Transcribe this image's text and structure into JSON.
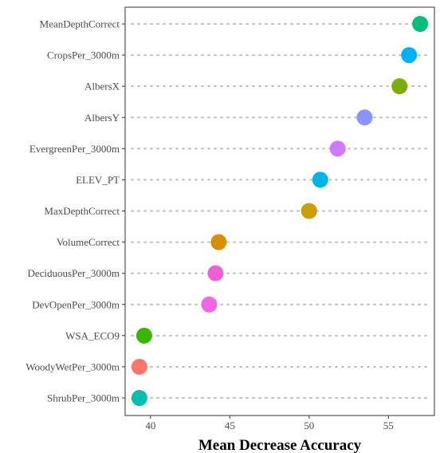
{
  "chart_data": {
    "type": "scatter",
    "title": "",
    "xlabel": "Mean Decrease Accuracy",
    "ylabel": "",
    "xlim": [
      38.4,
      57.9
    ],
    "xticks": [
      40,
      45,
      50,
      55
    ],
    "grid": "dotted horizontal lines per category",
    "legend": "none",
    "points": [
      {
        "label": "MeanDepthCorrect",
        "value": 57.0,
        "color": "#00BF7D"
      },
      {
        "label": "CropsPer_3000m",
        "value": 56.3,
        "color": "#00B0F6"
      },
      {
        "label": "AlbersX",
        "value": 55.7,
        "color": "#7CAE00"
      },
      {
        "label": "AlbersY",
        "value": 53.5,
        "color": "#8B93FF"
      },
      {
        "label": "EvergreenPer_3000m",
        "value": 51.8,
        "color": "#D078FF"
      },
      {
        "label": "ELEV_PT",
        "value": 50.7,
        "color": "#00B4E8"
      },
      {
        "label": "MaxDepthCorrect",
        "value": 50.0,
        "color": "#C9A000"
      },
      {
        "label": "VolumeCorrect",
        "value": 44.3,
        "color": "#D89000"
      },
      {
        "label": "DeciduousPer_3000m",
        "value": 44.1,
        "color": "#EE5FD8"
      },
      {
        "label": "DevOpenPer_3000m",
        "value": 43.7,
        "color": "#F265E6"
      },
      {
        "label": "WSA_ECO9",
        "value": 39.6,
        "color": "#39B600"
      },
      {
        "label": "WoodyWetPer_3000m",
        "value": 39.3,
        "color": "#F8766D"
      },
      {
        "label": "ShrubPer_3000m",
        "value": 39.3,
        "color": "#00BFAE"
      }
    ]
  }
}
